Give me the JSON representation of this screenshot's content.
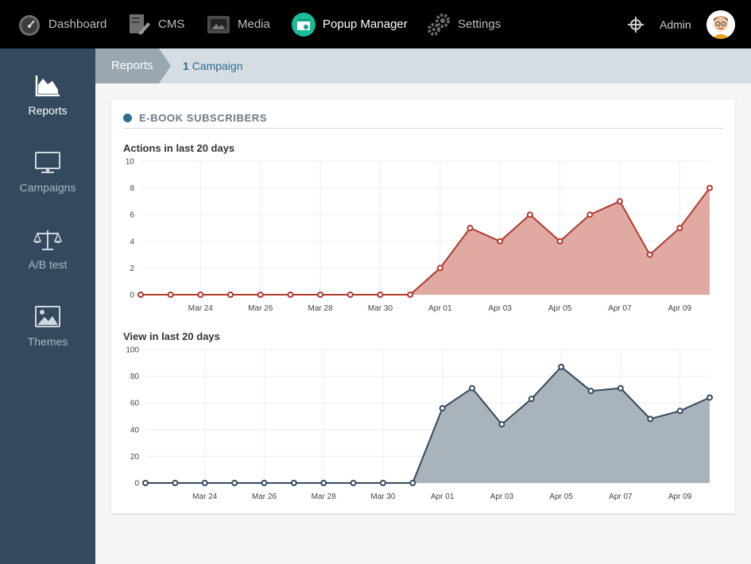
{
  "topbar": {
    "items": [
      {
        "label": "Dashboard",
        "icon": "speedometer-icon"
      },
      {
        "label": "CMS",
        "icon": "cms-icon"
      },
      {
        "label": "Media",
        "icon": "media-icon"
      },
      {
        "label": "Popup Manager",
        "icon": "popup-manager-icon",
        "active": true
      },
      {
        "label": "Settings",
        "icon": "gears-icon"
      }
    ],
    "admin_label": "Admin"
  },
  "sidebar": {
    "items": [
      {
        "label": "Reports",
        "icon": "area-chart-icon",
        "active": true
      },
      {
        "label": "Campaigns",
        "icon": "monitor-icon"
      },
      {
        "label": "A/B test",
        "icon": "balance-scale-icon"
      },
      {
        "label": "Themes",
        "icon": "image-icon"
      }
    ]
  },
  "breadcrumb": {
    "root": "Reports",
    "count": "1",
    "current": "Campaign"
  },
  "card": {
    "title": "E-BOOK SUBSCRIBERS"
  },
  "colors": {
    "actions_line": "#b03a2e",
    "actions_fill": "#e0aaa2",
    "views_line": "#34495e",
    "views_fill": "#a9b3bc",
    "accent": "#2e6f8f"
  },
  "chart_data": [
    {
      "type": "area",
      "title": "Actions in last 20 days",
      "x": [
        "Mar 22",
        "Mar 23",
        "Mar 24",
        "Mar 25",
        "Mar 26",
        "Mar 27",
        "Mar 28",
        "Mar 29",
        "Mar 30",
        "Mar 31",
        "Apr 01",
        "Apr 02",
        "Apr 03",
        "Apr 04",
        "Apr 05",
        "Apr 06",
        "Apr 07",
        "Apr 08",
        "Apr 09",
        "Apr 10"
      ],
      "values": [
        0,
        0,
        0,
        0,
        0,
        0,
        0,
        0,
        0,
        0,
        2,
        5,
        4,
        6,
        4,
        6,
        7,
        3,
        5,
        8
      ],
      "x_ticks": [
        "Mar 24",
        "Mar 26",
        "Mar 28",
        "Mar 30",
        "Apr 01",
        "Apr 03",
        "Apr 05",
        "Apr 07",
        "Apr 09"
      ],
      "y_ticks": [
        0,
        2,
        4,
        6,
        8,
        10
      ],
      "ylim": [
        0,
        10
      ],
      "grid": true
    },
    {
      "type": "area",
      "title": "View in last 20 days",
      "x": [
        "Mar 22",
        "Mar 23",
        "Mar 24",
        "Mar 25",
        "Mar 26",
        "Mar 27",
        "Mar 28",
        "Mar 29",
        "Mar 30",
        "Mar 31",
        "Apr 01",
        "Apr 02",
        "Apr 03",
        "Apr 04",
        "Apr 05",
        "Apr 06",
        "Apr 07",
        "Apr 08",
        "Apr 09",
        "Apr 10"
      ],
      "values": [
        0,
        0,
        0,
        0,
        0,
        0,
        0,
        0,
        0,
        0,
        56,
        71,
        44,
        63,
        87,
        69,
        71,
        48,
        54,
        64
      ],
      "x_ticks": [
        "Mar 24",
        "Mar 26",
        "Mar 28",
        "Mar 30",
        "Apr 01",
        "Apr 03",
        "Apr 05",
        "Apr 07",
        "Apr 09"
      ],
      "y_ticks": [
        0,
        20,
        40,
        60,
        80,
        100
      ],
      "ylim": [
        0,
        100
      ],
      "grid": true
    }
  ]
}
